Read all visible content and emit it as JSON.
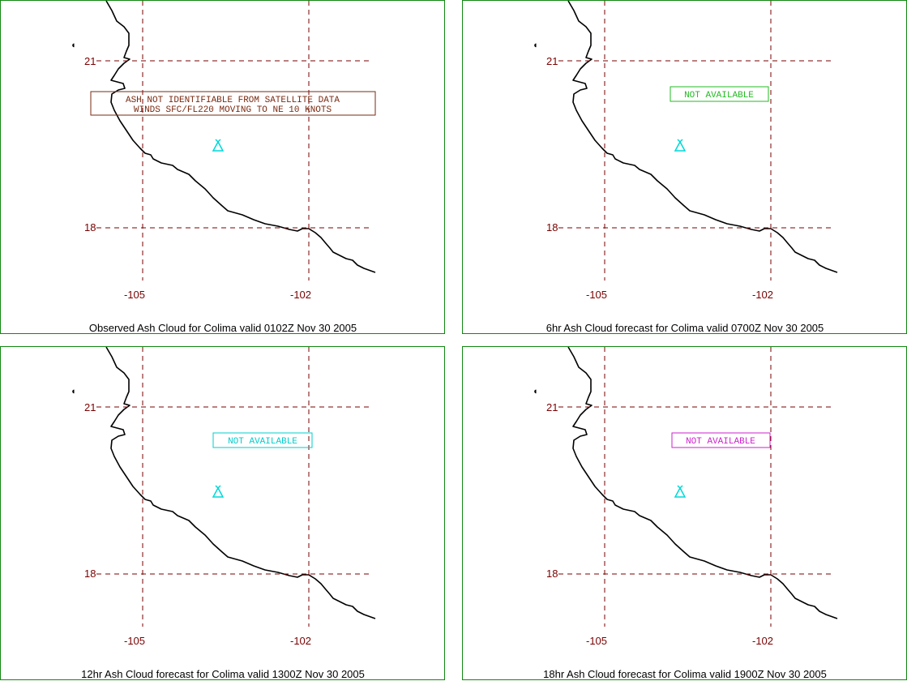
{
  "map": {
    "lat_labels": [
      "21",
      "18"
    ],
    "lon_labels": [
      "-105",
      "-102"
    ],
    "volcano_icon": "volcano-icon",
    "gridline_color": "#7a0000",
    "volcano_color": "#00d8d8",
    "border_color": "#118811"
  },
  "panels": [
    {
      "caption": "Observed Ash Cloud for Colima valid 0102Z Nov 30 2005",
      "notice_lines": [
        "ASH NOT IDENTIFIABLE FROM SATELLITE DATA",
        "WINDS SFC/FL220 MOVING TO NE 10 KNOTS"
      ],
      "notice_color": "#7a2a10"
    },
    {
      "caption": "6hr Ash Cloud forecast for Colima valid 0700Z Nov 30 2005",
      "notice_lines": [
        "NOT AVAILABLE"
      ],
      "notice_color": "#22bb22"
    },
    {
      "caption": "12hr Ash Cloud forecast for Colima valid 1300Z Nov 30 2005",
      "notice_lines": [
        "NOT AVAILABLE"
      ],
      "notice_color": "#00cccc"
    },
    {
      "caption": "18hr Ash Cloud forecast for Colima valid 1900Z Nov 30 2005",
      "notice_lines": [
        "NOT AVAILABLE"
      ],
      "notice_color": "#cc22cc"
    }
  ]
}
